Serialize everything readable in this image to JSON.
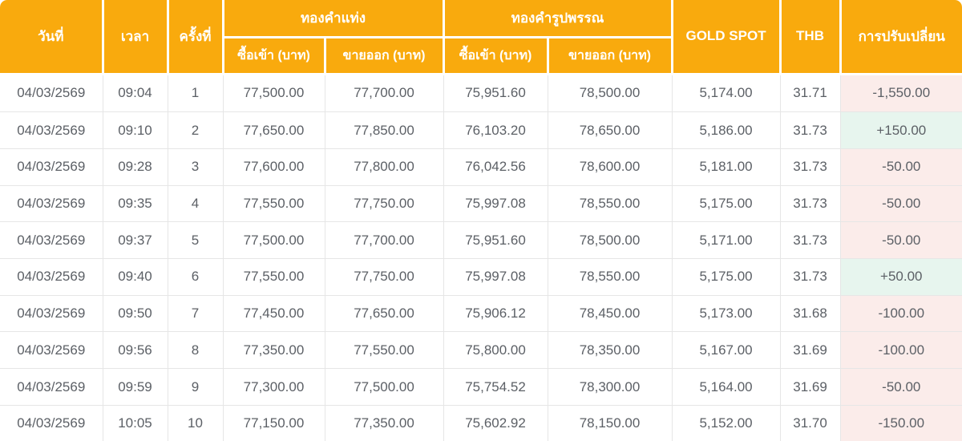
{
  "colors": {
    "header_bg": "#F9AA0D",
    "header_text": "#FFFFFF",
    "body_text": "#5C6066",
    "negative_bg": "#FBECEA",
    "positive_bg": "#E7F5EE",
    "row_border": "#E6E6E6"
  },
  "header": {
    "date": "วันที่",
    "time": "เวลา",
    "round": "ครั้งที่",
    "gold_bar_group": "ทองคำแท่ง",
    "gold_ornament_group": "ทองคำรูปพรรณ",
    "buy_label": "ซื้อเข้า (บาท)",
    "sell_label": "ขายออก (บาท)",
    "gold_spot": "GOLD SPOT",
    "thb": "THB",
    "change": "การปรับเปลี่ยน"
  },
  "chart_data": {
    "type": "table",
    "title": "",
    "columns": [
      "วันที่",
      "เวลา",
      "ครั้งที่",
      "ทองคำแท่ง ซื้อเข้า (บาท)",
      "ทองคำแท่ง ขายออก (บาท)",
      "ทองคำรูปพรรณ ซื้อเข้า (บาท)",
      "ทองคำรูปพรรณ ขายออก (บาท)",
      "GOLD SPOT",
      "THB",
      "การปรับเปลี่ยน"
    ],
    "rows": [
      [
        "04/03/2569",
        "09:04",
        "1",
        "77,500.00",
        "77,700.00",
        "75,951.60",
        "78,500.00",
        "5,174.00",
        "31.71",
        "-1,550.00"
      ],
      [
        "04/03/2569",
        "09:10",
        "2",
        "77,650.00",
        "77,850.00",
        "76,103.20",
        "78,650.00",
        "5,186.00",
        "31.73",
        "+150.00"
      ],
      [
        "04/03/2569",
        "09:28",
        "3",
        "77,600.00",
        "77,800.00",
        "76,042.56",
        "78,600.00",
        "5,181.00",
        "31.73",
        "-50.00"
      ],
      [
        "04/03/2569",
        "09:35",
        "4",
        "77,550.00",
        "77,750.00",
        "75,997.08",
        "78,550.00",
        "5,175.00",
        "31.73",
        "-50.00"
      ],
      [
        "04/03/2569",
        "09:37",
        "5",
        "77,500.00",
        "77,700.00",
        "75,951.60",
        "78,500.00",
        "5,171.00",
        "31.73",
        "-50.00"
      ],
      [
        "04/03/2569",
        "09:40",
        "6",
        "77,550.00",
        "77,750.00",
        "75,997.08",
        "78,550.00",
        "5,175.00",
        "31.73",
        "+50.00"
      ],
      [
        "04/03/2569",
        "09:50",
        "7",
        "77,450.00",
        "77,650.00",
        "75,906.12",
        "78,450.00",
        "5,173.00",
        "31.68",
        "-100.00"
      ],
      [
        "04/03/2569",
        "09:56",
        "8",
        "77,350.00",
        "77,550.00",
        "75,800.00",
        "78,350.00",
        "5,167.00",
        "31.69",
        "-100.00"
      ],
      [
        "04/03/2569",
        "09:59",
        "9",
        "77,300.00",
        "77,500.00",
        "75,754.52",
        "78,300.00",
        "5,164.00",
        "31.69",
        "-50.00"
      ],
      [
        "04/03/2569",
        "10:05",
        "10",
        "77,150.00",
        "77,350.00",
        "75,602.92",
        "78,150.00",
        "5,152.00",
        "31.70",
        "-150.00"
      ]
    ]
  }
}
